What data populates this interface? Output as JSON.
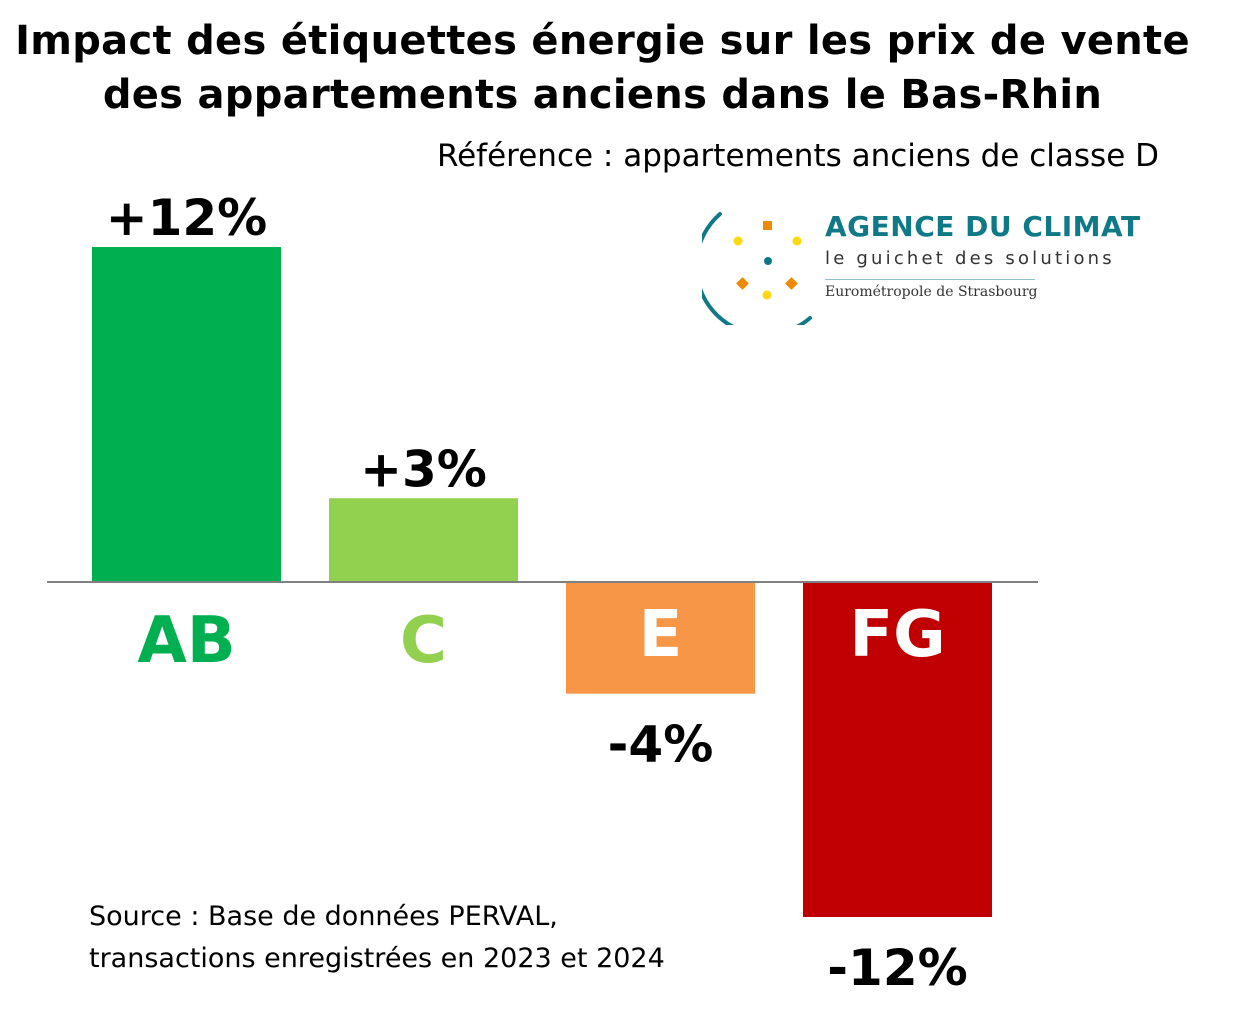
{
  "title_line1": "Impact des étiquettes énergie sur les prix de vente",
  "title_line2": "des appartements anciens dans le Bas-Rhin",
  "subtitle": "Référence : appartements anciens de classe D",
  "source_line1": "Source : Base de données PERVAL,",
  "source_line2": "transactions enregistrées en 2023 et 2024",
  "logo": {
    "name": "AGENCE DU CLIMAT",
    "tagline": "le guichet des solutions",
    "sub": "Eurométropole de Strasbourg",
    "color": "#0f7a86"
  },
  "chart_data": {
    "type": "bar",
    "categories": [
      "AB",
      "C",
      "E",
      "FG"
    ],
    "values": [
      12,
      3,
      -4,
      -12
    ],
    "value_labels": [
      "+12%",
      "+3%",
      "-4%",
      "-12%"
    ],
    "colors": [
      "#00b050",
      "#92d050",
      "#f79646",
      "#c00000"
    ],
    "category_label_colors": [
      "#00b050",
      "#92d050",
      "#ffffff",
      "#ffffff"
    ],
    "unit": "%",
    "ylim": [
      -12,
      12
    ],
    "grid": false,
    "legend": "none"
  }
}
